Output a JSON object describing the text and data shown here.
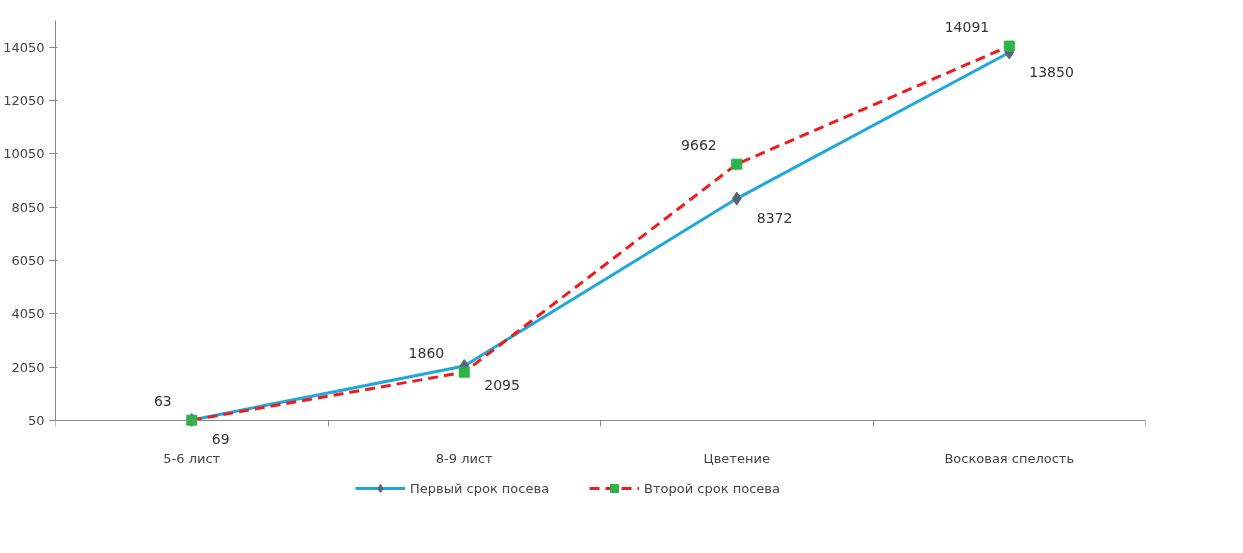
{
  "chart_data": {
    "type": "line",
    "categories": [
      "5-6 лист",
      "8-9 лист",
      "Цветение",
      "Восковая спелость"
    ],
    "series": [
      {
        "name": "Первый срок посева",
        "color": "#1fa8dc",
        "values": [
          69,
          2095,
          8372,
          13850
        ],
        "marker": "diamond",
        "line_style": "solid",
        "colors": [
          "#5a6478",
          "#5a6478",
          "#5a6478",
          "#5a6478"
        ]
      },
      {
        "name": "Второй срок посева",
        "color": "#ee1c1c",
        "values": [
          63,
          1860,
          9662,
          14091
        ],
        "marker": "square",
        "line_style": "dashed",
        "colors": [
          "#2db34a",
          "#2db34a",
          "#2db34a",
          "#2db34a"
        ]
      }
    ],
    "ylim": [
      50,
      15050
    ],
    "yticks": [
      50,
      2050,
      4050,
      6050,
      8050,
      10050,
      12050,
      14050
    ],
    "grid": false,
    "legend": "bottom",
    "data_labels": true
  }
}
